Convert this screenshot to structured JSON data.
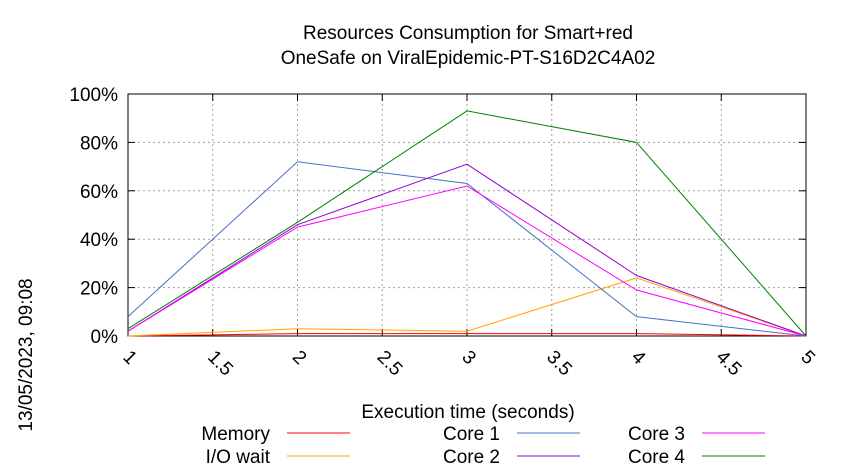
{
  "chart_data": {
    "type": "line",
    "title": "Resources Consumption for Smart+red",
    "subtitle": "OneSafe on ViralEpidemic-PT-S16D2C4A02",
    "xlabel": "Execution time (seconds)",
    "ylabel": "",
    "timestamp": "13/05/2023, 09:08",
    "xlim": [
      1,
      5
    ],
    "ylim": [
      0,
      100
    ],
    "x_ticks": [
      "1",
      "1.5",
      "2",
      "2.5",
      "3",
      "3.5",
      "4",
      "4.5",
      "5"
    ],
    "y_ticks": [
      "0%",
      "20%",
      "40%",
      "60%",
      "80%",
      "100%"
    ],
    "grid": true,
    "legend_position": "bottom",
    "x": [
      1,
      2,
      3,
      4,
      5
    ],
    "series": [
      {
        "name": "Memory",
        "color": "#ff0000",
        "values": [
          0,
          1,
          1,
          1,
          0
        ]
      },
      {
        "name": "I/O wait",
        "color": "#ffa500",
        "values": [
          0,
          3,
          2,
          24,
          0
        ]
      },
      {
        "name": "Core 1",
        "color": "#4472c4",
        "values": [
          8,
          72,
          63,
          8,
          0
        ]
      },
      {
        "name": "Core 2",
        "color": "#9400d3",
        "values": [
          2,
          46,
          71,
          25,
          0
        ]
      },
      {
        "name": "Core 3",
        "color": "#ff00ff",
        "values": [
          2,
          45,
          62,
          19,
          0
        ]
      },
      {
        "name": "Core 4",
        "color": "#008000",
        "values": [
          3,
          47,
          93,
          80,
          0
        ]
      }
    ]
  }
}
